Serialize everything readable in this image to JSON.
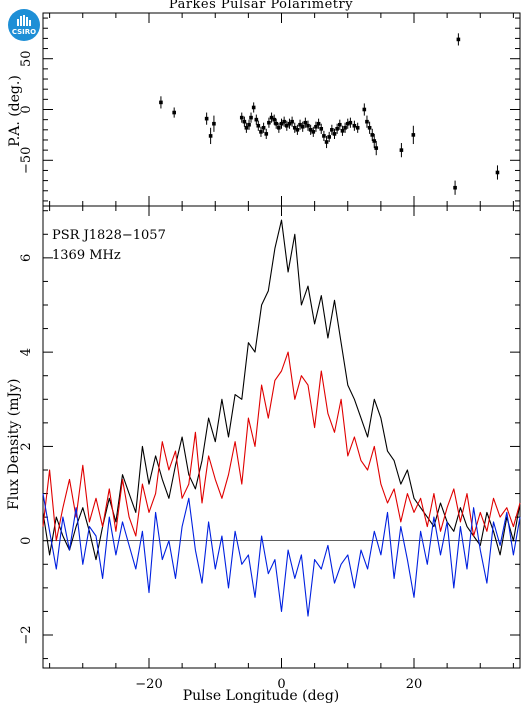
{
  "title": "Parkes Pulsar Polarimetry",
  "logo_text": "CSIRO",
  "chart_data": [
    {
      "type": "scatter",
      "panel": "top",
      "ylabel": "P.A. (deg.)",
      "xlim": [
        -36,
        36
      ],
      "ylim": [
        -95,
        95
      ],
      "yticks": [
        -50,
        0,
        50
      ],
      "xticks": [
        -20,
        0,
        20
      ],
      "points": [
        [
          -18.2,
          7,
          6
        ],
        [
          -16.2,
          -3,
          5
        ],
        [
          -11.3,
          -9,
          6
        ],
        [
          -10.7,
          -26,
          8
        ],
        [
          -10.2,
          -14,
          8
        ],
        [
          -6.0,
          -8,
          5
        ],
        [
          -5.6,
          -12,
          5
        ],
        [
          -5.3,
          -18,
          5
        ],
        [
          -4.9,
          -15,
          5
        ],
        [
          -4.6,
          -8,
          5
        ],
        [
          -4.2,
          2,
          5
        ],
        [
          -3.8,
          -10,
          5
        ],
        [
          -3.5,
          -16,
          5
        ],
        [
          -3.1,
          -22,
          5
        ],
        [
          -2.7,
          -18,
          5
        ],
        [
          -2.3,
          -24,
          5
        ],
        [
          -1.9,
          -13,
          5
        ],
        [
          -1.5,
          -8,
          5
        ],
        [
          -1.1,
          -10,
          5
        ],
        [
          -0.8,
          -14,
          5
        ],
        [
          -0.4,
          -18,
          5
        ],
        [
          0.0,
          -14,
          5
        ],
        [
          0.4,
          -12,
          5
        ],
        [
          0.8,
          -16,
          5
        ],
        [
          1.2,
          -14,
          5
        ],
        [
          1.6,
          -12,
          5
        ],
        [
          2.0,
          -18,
          5
        ],
        [
          2.4,
          -20,
          5
        ],
        [
          2.8,
          -15,
          5
        ],
        [
          3.2,
          -17,
          5
        ],
        [
          3.6,
          -13,
          5
        ],
        [
          4.0,
          -16,
          5
        ],
        [
          4.4,
          -20,
          5
        ],
        [
          4.8,
          -22,
          5
        ],
        [
          5.2,
          -17,
          5
        ],
        [
          5.6,
          -14,
          5
        ],
        [
          6.0,
          -19,
          5
        ],
        [
          6.4,
          -26,
          5
        ],
        [
          6.8,
          -32,
          6
        ],
        [
          7.2,
          -27,
          5
        ],
        [
          7.6,
          -20,
          5
        ],
        [
          8.0,
          -24,
          5
        ],
        [
          8.4,
          -19,
          5
        ],
        [
          8.8,
          -15,
          5
        ],
        [
          9.2,
          -21,
          5
        ],
        [
          9.6,
          -18,
          5
        ],
        [
          10.0,
          -14,
          5
        ],
        [
          10.4,
          -13,
          5
        ],
        [
          11.0,
          -16,
          5
        ],
        [
          11.5,
          -18,
          5
        ],
        [
          12.5,
          0,
          6
        ],
        [
          12.9,
          -12,
          6
        ],
        [
          13.3,
          -18,
          6
        ],
        [
          13.7,
          -25,
          6
        ],
        [
          14.0,
          -31,
          7
        ],
        [
          14.3,
          -38,
          7
        ],
        [
          18.1,
          -40,
          7
        ],
        [
          19.9,
          -25,
          9
        ],
        [
          26.2,
          -77,
          7
        ],
        [
          26.7,
          69,
          6
        ],
        [
          32.6,
          -62,
          7
        ]
      ]
    },
    {
      "type": "line",
      "panel": "bottom",
      "ylabel": "Flux Density (mJy)",
      "xlabel": "Pulse Longitude (deg)",
      "xlim": [
        -36,
        36
      ],
      "ylim": [
        -2.7,
        7.1
      ],
      "yticks": [
        -2,
        0,
        2,
        4,
        6
      ],
      "xticks": [
        -20,
        0,
        20
      ],
      "annotations": [
        "PSR J1828−1057",
        "1369 MHz"
      ],
      "x": [
        -36,
        -35,
        -34,
        -33,
        -32,
        -31,
        -30,
        -29,
        -28,
        -27,
        -26,
        -25,
        -24,
        -23,
        -22,
        -21,
        -20,
        -19,
        -18,
        -17,
        -16,
        -15,
        -14,
        -13,
        -12,
        -11,
        -10,
        -9,
        -8,
        -7,
        -6,
        -5,
        -4,
        -3,
        -2,
        -1,
        0,
        1,
        2,
        3,
        4,
        5,
        6,
        7,
        8,
        9,
        10,
        11,
        12,
        13,
        14,
        15,
        16,
        17,
        18,
        19,
        20,
        21,
        22,
        23,
        24,
        25,
        26,
        27,
        28,
        29,
        30,
        31,
        32,
        33,
        34,
        35,
        36
      ],
      "series": [
        {
          "color": "#000000",
          "values": [
            0.6,
            -0.3,
            0.5,
            0.1,
            -0.2,
            0.3,
            0.7,
            0.2,
            -0.4,
            0.3,
            0.9,
            0.4,
            1.4,
            1.0,
            0.6,
            2.0,
            1.2,
            1.8,
            1.3,
            0.9,
            1.6,
            2.2,
            1.4,
            1.1,
            1.7,
            2.6,
            2.1,
            3.0,
            2.2,
            3.1,
            3.0,
            4.2,
            4.0,
            5.0,
            5.3,
            6.2,
            6.8,
            5.7,
            6.5,
            5.0,
            5.4,
            4.6,
            5.2,
            4.3,
            5.1,
            4.2,
            3.3,
            3.0,
            2.6,
            2.2,
            3.0,
            2.6,
            1.9,
            1.7,
            1.2,
            1.5,
            0.9,
            0.7,
            0.5,
            0.3,
            0.8,
            0.4,
            0.2,
            0.7,
            0.3,
            0.1,
            -0.1,
            0.6,
            0.2,
            -0.3,
            0.5,
            0.0,
            0.8
          ]
        },
        {
          "color": "#e00000",
          "values": [
            0.3,
            1.5,
            0.0,
            0.7,
            1.3,
            0.5,
            1.6,
            0.4,
            0.9,
            0.3,
            1.1,
            0.2,
            1.3,
            0.5,
            0.1,
            1.2,
            0.6,
            1.0,
            2.1,
            1.5,
            1.9,
            0.9,
            1.2,
            2.3,
            0.8,
            1.8,
            1.3,
            0.9,
            1.4,
            2.1,
            1.2,
            2.6,
            2.0,
            3.3,
            2.6,
            3.4,
            3.6,
            4.0,
            3.0,
            3.5,
            3.3,
            2.4,
            3.6,
            2.7,
            2.3,
            3.0,
            1.8,
            2.2,
            1.7,
            1.5,
            2.0,
            1.2,
            0.8,
            1.1,
            0.4,
            1.0,
            0.6,
            0.9,
            0.3,
            1.0,
            0.2,
            0.7,
            1.1,
            0.4,
            1.0,
            0.1,
            0.6,
            0.2,
            0.9,
            0.5,
            0.7,
            0.3,
            0.8
          ]
        },
        {
          "color": "#0020e0",
          "values": [
            1.0,
            0.2,
            -0.6,
            0.5,
            -0.2,
            0.7,
            -0.5,
            0.3,
            0.1,
            -0.8,
            0.5,
            -0.3,
            0.4,
            -0.1,
            -0.6,
            0.2,
            -1.1,
            0.6,
            -0.4,
            0.0,
            -0.8,
            0.3,
            0.9,
            -0.2,
            -0.9,
            0.4,
            -0.6,
            0.1,
            -1.0,
            0.2,
            -0.5,
            -0.3,
            -1.2,
            0.1,
            -0.7,
            -0.4,
            -1.5,
            -0.2,
            -0.8,
            -0.3,
            -1.6,
            -0.4,
            -0.6,
            -0.1,
            -0.9,
            -0.5,
            -0.3,
            -1.0,
            -0.2,
            -0.6,
            0.2,
            -0.3,
            0.6,
            -0.8,
            0.3,
            -0.4,
            -1.2,
            0.2,
            -0.5,
            0.5,
            -0.3,
            0.4,
            -1.0,
            0.3,
            -0.6,
            0.7,
            -0.2,
            -0.9,
            0.4,
            -0.1,
            0.6,
            -0.3,
            0.5
          ]
        }
      ]
    }
  ]
}
